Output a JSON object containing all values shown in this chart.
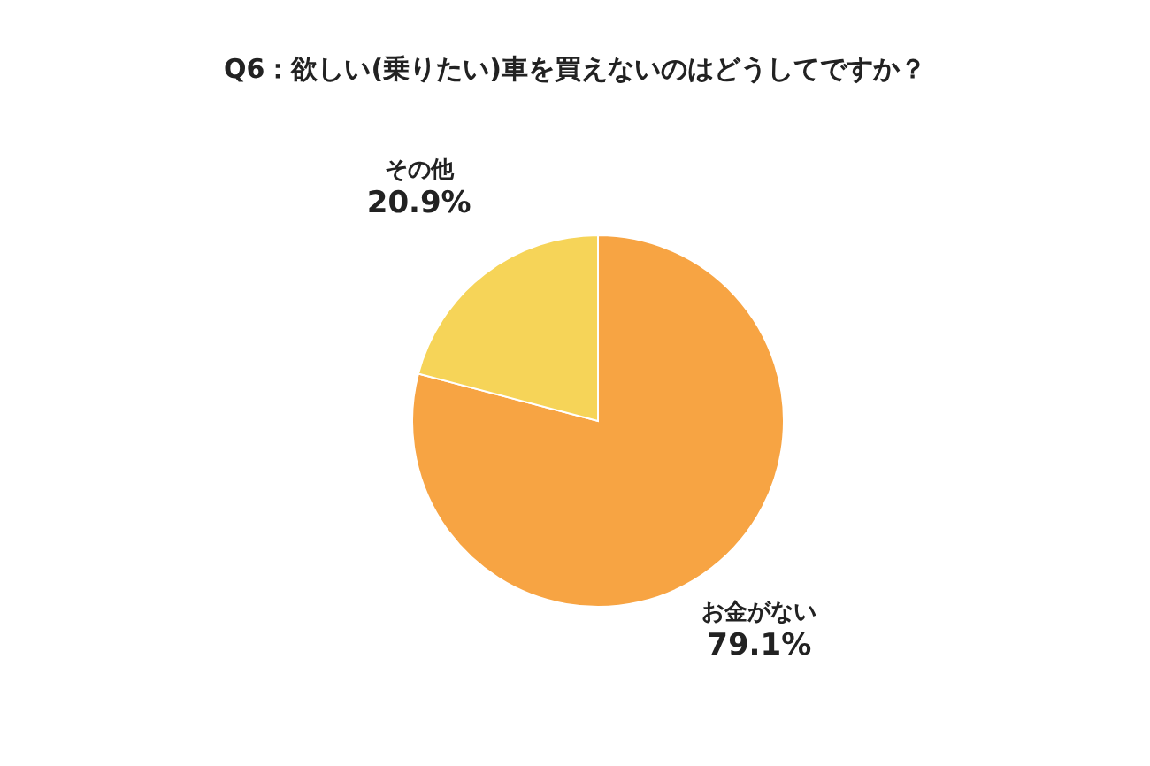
{
  "chart_data": {
    "type": "pie",
    "title": "Q6：欲しい(乗りたい)車を買えないのはどうしてですか？",
    "categories": [
      "お金がない",
      "その他"
    ],
    "values": [
      79.1,
      20.9
    ],
    "value_labels": [
      "79.1%",
      "20.9%"
    ],
    "colors": [
      "#f7a443",
      "#f6d458"
    ]
  }
}
